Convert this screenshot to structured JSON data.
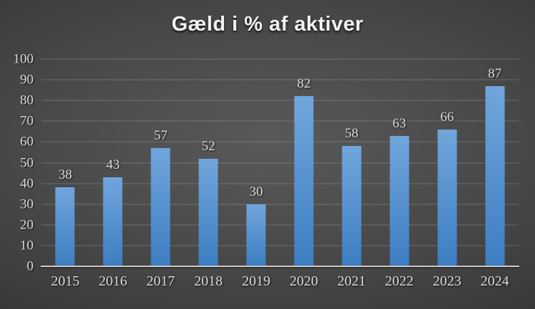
{
  "chart_data": {
    "type": "bar",
    "title": "Gæld i % af aktiver",
    "categories": [
      "2015",
      "2016",
      "2017",
      "2018",
      "2019",
      "2020",
      "2021",
      "2022",
      "2023",
      "2024"
    ],
    "values": [
      38,
      43,
      57,
      52,
      30,
      82,
      58,
      63,
      66,
      87
    ],
    "xlabel": "",
    "ylabel": "",
    "ylim": [
      0,
      100
    ],
    "yticks": [
      0,
      10,
      20,
      30,
      40,
      50,
      60,
      70,
      80,
      90,
      100
    ],
    "grid": true,
    "legend": "none",
    "data_labels_shown": true,
    "colors": {
      "bar_top": "#71a6dc",
      "bar_bottom": "#3c7ec2",
      "background_center": "#595959",
      "background_edge": "#242424",
      "gridline": "rgba(255,255,255,0.20)",
      "axis_line": "#c9c9c9",
      "tick_label": "#d9d9d9",
      "title": "#f2f2f2"
    }
  }
}
